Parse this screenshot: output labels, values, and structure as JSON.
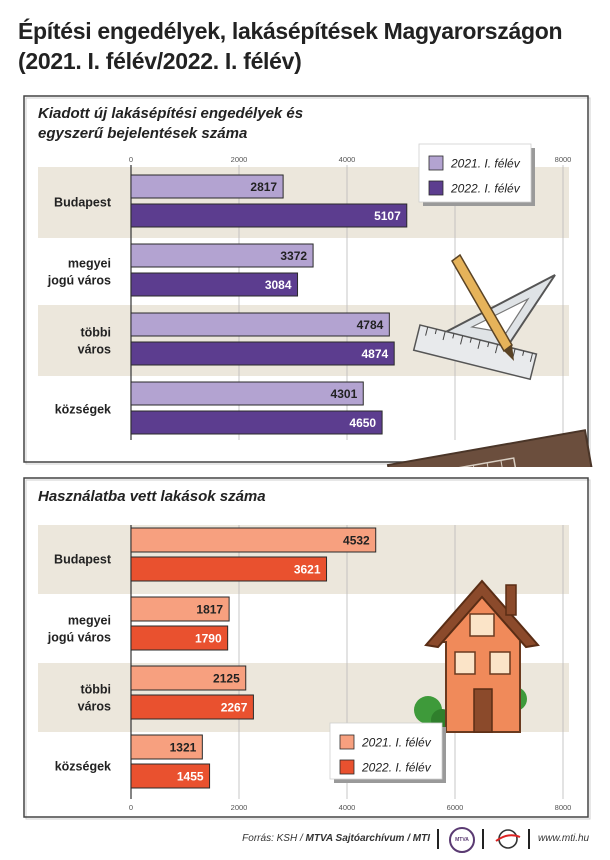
{
  "title": {
    "line1": "Építési engedélyek, lakásépítések Magyarországon",
    "line2": "(2021. I. félév/2022. I. félév)"
  },
  "colors": {
    "band": "#ece7dc",
    "chart1_2021": "#b3a3d1",
    "chart1_2022": "#5c3d8f",
    "chart2_2021": "#f7a07f",
    "chart2_2022": "#e9512f"
  },
  "chart_data": [
    {
      "type": "bar",
      "title": "Kiadott új lakásépítési engedélyek és egyszerű bejelentések száma",
      "categories": [
        [
          "Budapest"
        ],
        [
          "megyei",
          "jogú város"
        ],
        [
          "többi",
          "város"
        ],
        [
          "községek"
        ]
      ],
      "series": [
        {
          "name": "2021. I. félév",
          "values": [
            2817,
            3372,
            4784,
            4301
          ]
        },
        {
          "name": "2022. I. félév",
          "values": [
            5107,
            3084,
            4874,
            4650
          ]
        }
      ],
      "xlim": [
        0,
        8000
      ],
      "ticks": [
        0,
        2000,
        4000,
        6000,
        8000
      ],
      "tick_labels": [
        "0",
        "2000",
        "4000",
        "",
        "8000"
      ],
      "axis_position": "top",
      "legend": "top-right"
    },
    {
      "type": "bar",
      "title": "Használatba vett lakások száma",
      "categories": [
        [
          "Budapest"
        ],
        [
          "megyei",
          "jogú város"
        ],
        [
          "többi",
          "város"
        ],
        [
          "községek"
        ]
      ],
      "series": [
        {
          "name": "2021. I. félév",
          "values": [
            4532,
            1817,
            2125,
            1321
          ]
        },
        {
          "name": "2022. I. félév",
          "values": [
            3621,
            1790,
            2267,
            1455
          ]
        }
      ],
      "xlim": [
        0,
        8000
      ],
      "ticks": [
        0,
        2000,
        4000,
        6000,
        8000
      ],
      "tick_labels": [
        "0",
        "2000",
        "4000",
        "6000",
        "8000"
      ],
      "axis_position": "bottom",
      "legend": "bottom-right"
    }
  ],
  "footer": {
    "source_prefix": "Forrás: KSH / ",
    "source_bold": "MTVA Sajtóarchívum / MTI",
    "mtva_logo": "MTVA",
    "website": "www.mti.hu"
  }
}
